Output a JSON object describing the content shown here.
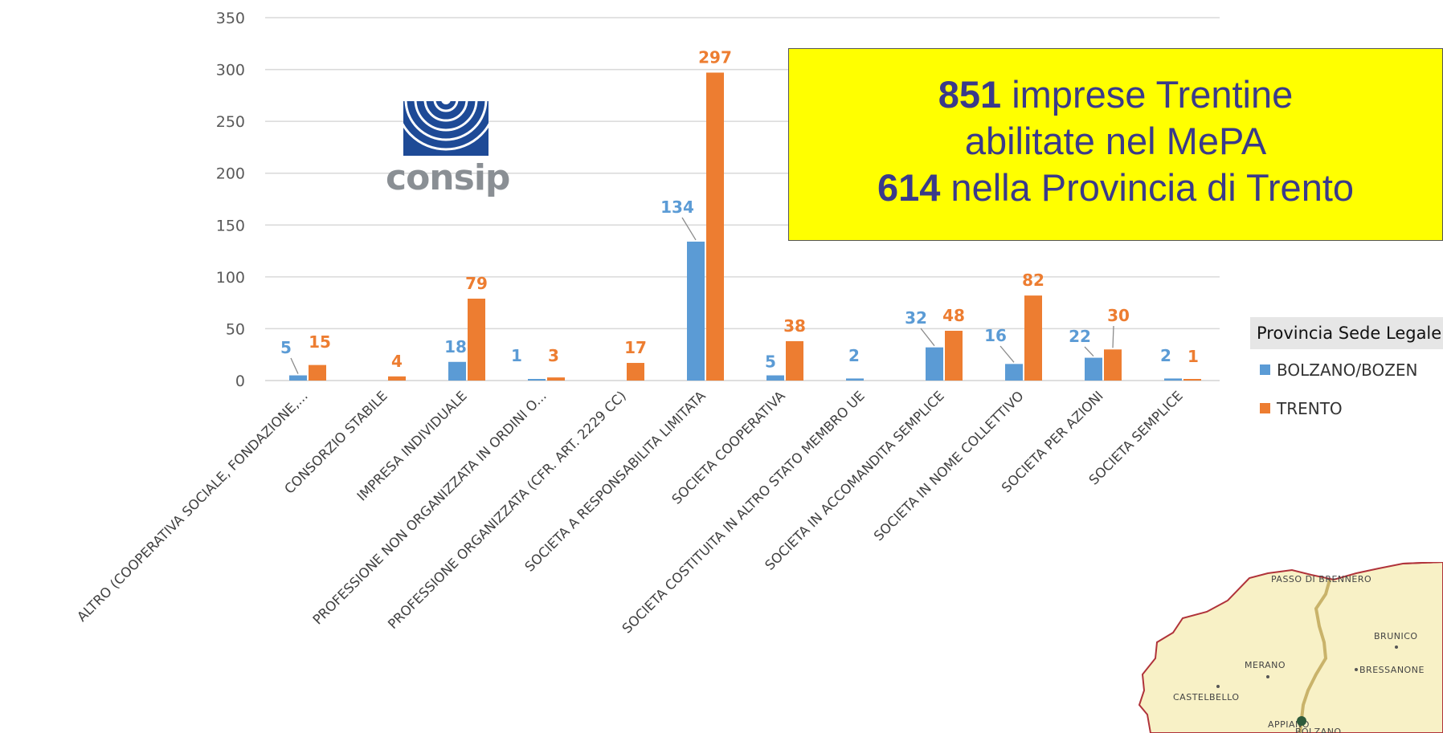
{
  "chart_data": {
    "type": "bar",
    "title": "",
    "xlabel": "",
    "ylabel": "",
    "ylim": [
      0,
      350
    ],
    "yticks": [
      0,
      50,
      100,
      150,
      200,
      250,
      300,
      350
    ],
    "grid": true,
    "legend_title": "Provincia Sede Legale",
    "legend_position": "right",
    "categories": [
      "ALTRO (COOPERATIVA SOCIALE, FONDAZIONE,...",
      "CONSORZIO STABILE",
      "IMPRESA INDIVIDUALE",
      "PROFESSIONE NON ORGANIZZATA IN ORDINI O...",
      "PROFESSIONE ORGANIZZATA (CFR. ART. 2229 CC)",
      "SOCIETA A RESPONSABILITA LIMITATA",
      "SOCIETA COOPERATIVA",
      "SOCIETA COSTITUITA IN ALTRO STATO MEMBRO UE",
      "SOCIETA IN ACCOMANDITA SEMPLICE",
      "SOCIETA IN NOME COLLETTIVO",
      "SOCIETA PER AZIONI",
      "SOCIETA SEMPLICE"
    ],
    "series": [
      {
        "name": "BOLZANO/BOZEN",
        "color": "#5b9bd5",
        "values": [
          5,
          null,
          18,
          1,
          null,
          134,
          5,
          2,
          32,
          16,
          22,
          2
        ]
      },
      {
        "name": "TRENTO",
        "color": "#ed7d31",
        "values": [
          15,
          4,
          79,
          3,
          17,
          297,
          38,
          null,
          48,
          82,
          30,
          1
        ]
      }
    ]
  },
  "logo": {
    "text": "consip"
  },
  "callout": {
    "line1_num": "851",
    "line1_text": " imprese Trentine",
    "line2_text": "abilitate nel MePA",
    "line3_num": "614",
    "line3_text": " nella Provincia di Trento"
  },
  "map": {
    "labels": [
      "PASSO DI BRENNERO",
      "BRUNICO",
      "MERANO",
      "BRESSANONE",
      "CASTELBELLO",
      "APPIANO",
      "BOLZANO"
    ]
  }
}
